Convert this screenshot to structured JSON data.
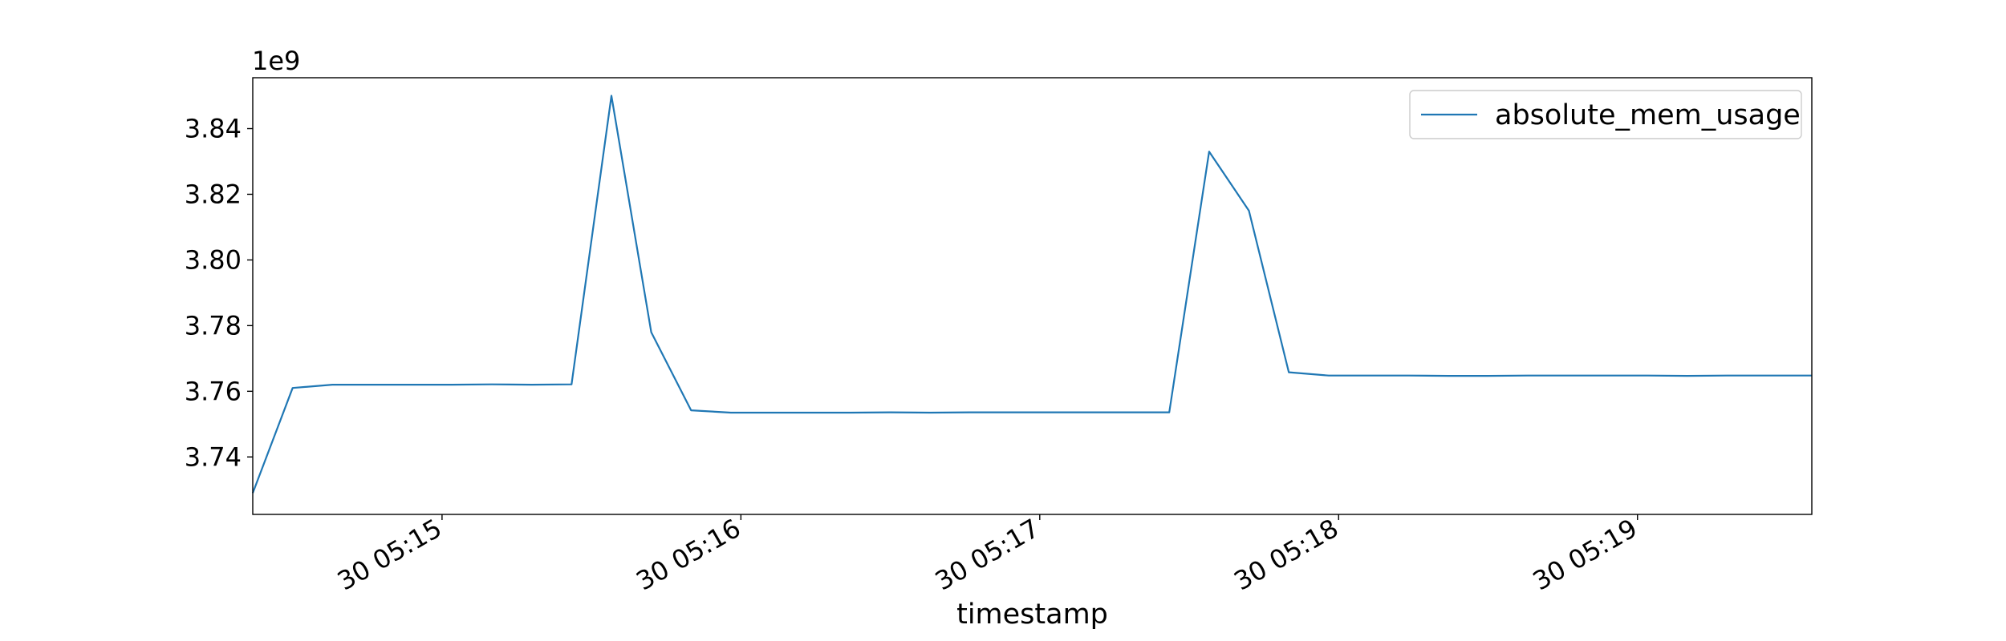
{
  "chart_data": {
    "type": "line",
    "title": "",
    "xlabel": "timestamp",
    "ylabel": "",
    "y_scale_note": "1e9",
    "y_multiplier": 1000000000,
    "xlim": [
      "05:14:22",
      "05:19:35"
    ],
    "ylim": [
      3.7225,
      3.8555
    ],
    "grid": false,
    "legend_position": "upper right",
    "x_ticks": [
      {
        "value": "05:15:00",
        "label": "30 05:15"
      },
      {
        "value": "05:16:00",
        "label": "30 05:16"
      },
      {
        "value": "05:17:00",
        "label": "30 05:17"
      },
      {
        "value": "05:18:00",
        "label": "30 05:18"
      },
      {
        "value": "05:19:00",
        "label": "30 05:19"
      }
    ],
    "y_ticks": [
      {
        "value": 3.74,
        "label": "3.74"
      },
      {
        "value": 3.76,
        "label": "3.76"
      },
      {
        "value": 3.78,
        "label": "3.78"
      },
      {
        "value": 3.8,
        "label": "3.80"
      },
      {
        "value": 3.82,
        "label": "3.82"
      },
      {
        "value": 3.84,
        "label": "3.84"
      }
    ],
    "series": [
      {
        "name": "absolute_mem_usage",
        "color": "#1f77b4",
        "x": [
          "05:14:22",
          "05:14:30",
          "05:14:38",
          "05:14:46",
          "05:14:54",
          "05:15:02",
          "05:15:10",
          "05:15:18",
          "05:15:26",
          "05:15:34",
          "05:15:42",
          "05:15:50",
          "05:15:58",
          "05:16:06",
          "05:16:14",
          "05:16:22",
          "05:16:30",
          "05:16:38",
          "05:16:46",
          "05:16:54",
          "05:17:02",
          "05:17:10",
          "05:17:18",
          "05:17:26",
          "05:17:34",
          "05:17:42",
          "05:17:50",
          "05:17:58",
          "05:18:06",
          "05:18:14",
          "05:18:22",
          "05:18:30",
          "05:18:38",
          "05:18:46",
          "05:18:54",
          "05:19:02",
          "05:19:10",
          "05:19:18",
          "05:19:26",
          "05:19:35"
        ],
        "y": [
          3.729,
          3.761,
          3.762,
          3.762,
          3.762,
          3.762,
          3.7621,
          3.762,
          3.7621,
          3.85,
          3.778,
          3.7542,
          3.7535,
          3.7535,
          3.7535,
          3.7535,
          3.7536,
          3.7535,
          3.7536,
          3.7536,
          3.7536,
          3.7536,
          3.7536,
          3.7536,
          3.833,
          3.815,
          3.7658,
          3.7648,
          3.7648,
          3.7648,
          3.7647,
          3.7647,
          3.7648,
          3.7648,
          3.7648,
          3.7648,
          3.7647,
          3.7648,
          3.7648,
          3.7648
        ]
      }
    ]
  }
}
